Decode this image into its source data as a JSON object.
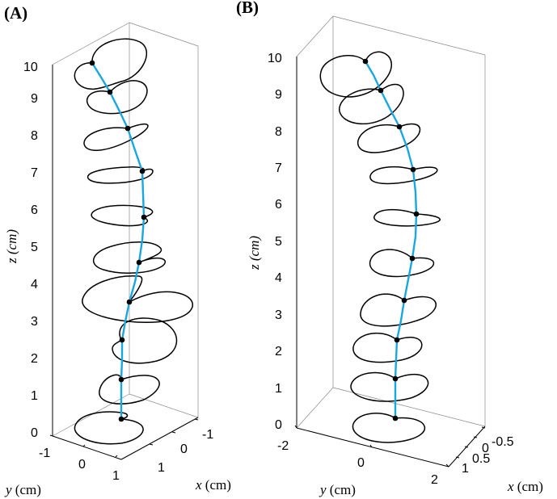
{
  "chart_data": [
    {
      "type": "line3d",
      "panel_label": "(A)",
      "xlabel": "x (cm)",
      "ylabel": "y (cm)",
      "zlabel": "z (cm)",
      "xlim": [
        -1.5,
        1.5
      ],
      "ylim": [
        -1.3,
        1.3
      ],
      "zlim": [
        0,
        10.5
      ],
      "x_ticks": [
        "-1",
        "0",
        "1"
      ],
      "y_ticks": [
        "-1",
        "0",
        "1"
      ],
      "z_ticks": [
        "0",
        "1",
        "2",
        "3",
        "4",
        "5",
        "6",
        "7",
        "8",
        "9",
        "10"
      ],
      "centerline_color": "#1aa6e0",
      "centerline": {
        "x": [
          0.95,
          0.95,
          0.82,
          0.85,
          1.05,
          1.25,
          1.35,
          1.4,
          1.3,
          1.0,
          0.55
        ],
        "z": [
          0.3,
          1.35,
          2.45,
          3.5,
          4.6,
          5.85,
          7.1,
          8.3,
          9.3,
          9.7,
          10.05
        ]
      },
      "slice_points": {
        "x": [
          0.95,
          0.95,
          0.82,
          0.85,
          1.05,
          1.25,
          1.35,
          1.4,
          1.3,
          0.55
        ],
        "z": [
          0.3,
          1.35,
          2.45,
          3.5,
          4.6,
          5.85,
          7.1,
          8.3,
          9.3,
          10.05
        ]
      }
    },
    {
      "type": "line3d",
      "panel_label": "(B)",
      "xlabel": "x (cm)",
      "ylabel": "y (cm)",
      "zlabel": "z (cm)",
      "xlim": [
        -0.8,
        1.2
      ],
      "ylim": [
        -2,
        2
      ],
      "zlim": [
        0,
        10.5
      ],
      "x_ticks": [
        "-0.5",
        "0",
        "0.5",
        "1"
      ],
      "y_ticks": [
        "-2",
        "0",
        "2"
      ],
      "z_ticks": [
        "0",
        "1",
        "2",
        "3",
        "4",
        "5",
        "6",
        "7",
        "8",
        "9",
        "10"
      ],
      "centerline_color": "#1aa6e0",
      "centerline": {
        "x": [
          0.3,
          0.3,
          0.35,
          0.5,
          0.7,
          0.85,
          0.75,
          0.45,
          0.1,
          -0.25
        ],
        "z": [
          0.2,
          1.25,
          2.35,
          3.4,
          4.55,
          5.75,
          6.95,
          8.1,
          9.1,
          9.9
        ]
      },
      "slice_points": {
        "x": [
          0.3,
          0.3,
          0.35,
          0.5,
          0.7,
          0.85,
          0.75,
          0.45,
          0.1,
          -0.25
        ],
        "z": [
          0.2,
          1.25,
          2.35,
          3.4,
          4.55,
          5.75,
          6.95,
          8.1,
          9.1,
          9.9
        ]
      }
    }
  ]
}
